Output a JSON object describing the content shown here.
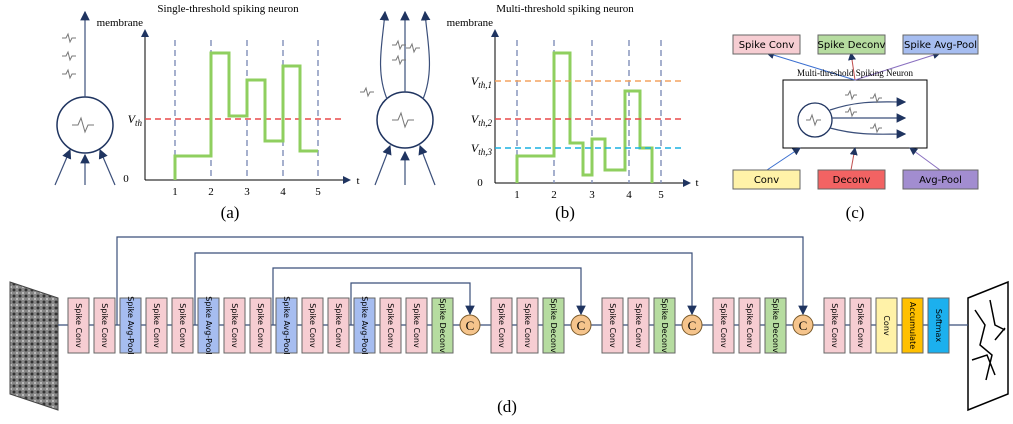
{
  "panel_a": {
    "title": "Single-threshold spiking neuron",
    "y_label": "membrane",
    "threshold": {
      "base": "V",
      "sub": "th"
    },
    "origin": 0,
    "x_label": "t",
    "ticks": [
      1,
      2,
      3,
      4,
      5
    ],
    "caption": "(a)"
  },
  "panel_b": {
    "title": "Multi-threshold spiking neuron",
    "y_label": "membrane",
    "thresholds": [
      {
        "base": "V",
        "sub": "th,1",
        "color": "#f4a460"
      },
      {
        "base": "V",
        "sub": "th,2",
        "color": "#e84a4a"
      },
      {
        "base": "V",
        "sub": "th,3",
        "color": "#1ab0e0"
      }
    ],
    "origin": 0,
    "x_label": "t",
    "ticks": [
      1,
      2,
      3,
      4,
      5
    ],
    "caption": "(b)"
  },
  "panel_c": {
    "top_blocks": [
      {
        "label": "Spike Conv",
        "color": "#f6cdd2"
      },
      {
        "label": "Spike Deconv",
        "color": "#b6dca0"
      },
      {
        "label": "Spike Avg-Pool",
        "color": "#a6bdf0"
      }
    ],
    "neuron_label": "Multi-threshold Spiking Neuron",
    "bottom_blocks": [
      {
        "label": "Conv",
        "color": "#fff2a8"
      },
      {
        "label": "Deconv",
        "color": "#f26363"
      },
      {
        "label": "Avg-Pool",
        "color": "#a28dd0"
      }
    ],
    "caption": "(c)"
  },
  "panel_d": {
    "sequence": [
      {
        "label": "Spike Conv",
        "color": "#f6cdd2"
      },
      {
        "label": "Spike Conv",
        "color": "#f6cdd2"
      },
      {
        "label": "Spike Avg-Pool",
        "color": "#a6bdf0"
      },
      {
        "label": "Spike Conv",
        "color": "#f6cdd2"
      },
      {
        "label": "Spike Conv",
        "color": "#f6cdd2"
      },
      {
        "label": "Spike Avg-Pool",
        "color": "#a6bdf0"
      },
      {
        "label": "Spike Conv",
        "color": "#f6cdd2"
      },
      {
        "label": "Spike Conv",
        "color": "#f6cdd2"
      },
      {
        "label": "Spike Avg-Pool",
        "color": "#a6bdf0"
      },
      {
        "label": "Spike Conv",
        "color": "#f6cdd2"
      },
      {
        "label": "Spike Conv",
        "color": "#f6cdd2"
      },
      {
        "label": "Spike Avg-Pool",
        "color": "#a6bdf0"
      },
      {
        "label": "Spike Conv",
        "color": "#f6cdd2"
      },
      {
        "label": "Spike Conv",
        "color": "#f6cdd2"
      },
      {
        "label": "Spike Deconv",
        "color": "#b6dca0"
      },
      {
        "label": "C",
        "color": "#f5c48c",
        "concat": true
      },
      {
        "label": "Spike Conv",
        "color": "#f6cdd2"
      },
      {
        "label": "Spike Conv",
        "color": "#f6cdd2"
      },
      {
        "label": "Spike Deconv",
        "color": "#b6dca0"
      },
      {
        "label": "C",
        "color": "#f5c48c",
        "concat": true
      },
      {
        "label": "Spike Conv",
        "color": "#f6cdd2"
      },
      {
        "label": "Spike Conv",
        "color": "#f6cdd2"
      },
      {
        "label": "Spike Deconv",
        "color": "#b6dca0"
      },
      {
        "label": "C",
        "color": "#f5c48c",
        "concat": true
      },
      {
        "label": "Spike Conv",
        "color": "#f6cdd2"
      },
      {
        "label": "Spike Conv",
        "color": "#f6cdd2"
      },
      {
        "label": "Spike Deconv",
        "color": "#b6dca0"
      },
      {
        "label": "C",
        "color": "#f5c48c",
        "concat": true
      },
      {
        "label": "Spike Conv",
        "color": "#f6cdd2"
      },
      {
        "label": "Spike Conv",
        "color": "#f6cdd2"
      },
      {
        "label": "Conv",
        "color": "#fff2a8"
      },
      {
        "label": "Accumulate",
        "color": "#ffc000"
      },
      {
        "label": "Softmax",
        "color": "#1cb0ee"
      }
    ],
    "caption": "(d)"
  }
}
